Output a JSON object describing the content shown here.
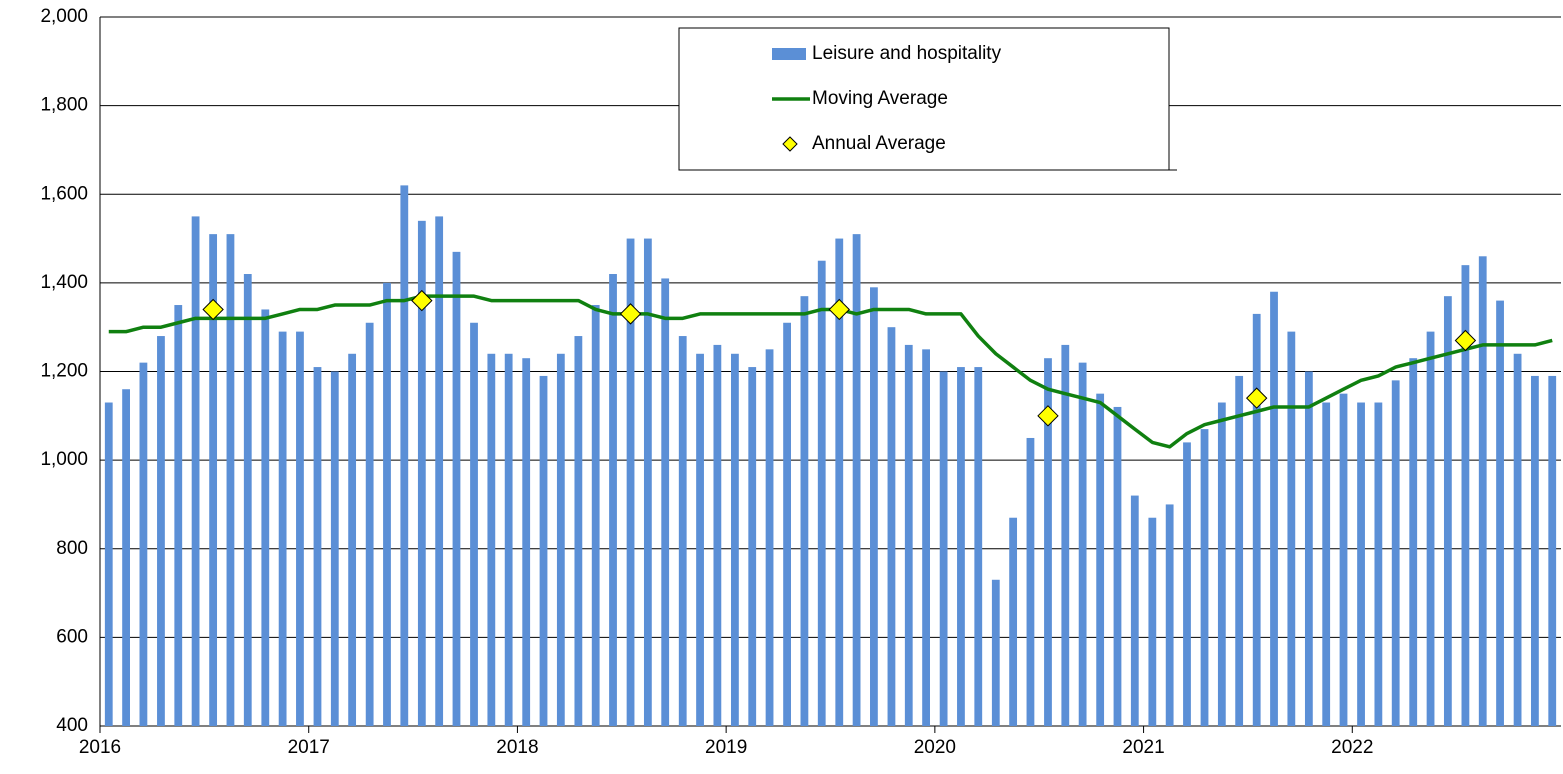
{
  "chart_data": {
    "type": "combo",
    "xlim": [
      2016,
      2023
    ],
    "xticks": [
      2016,
      2017,
      2018,
      2019,
      2020,
      2021,
      2022
    ],
    "ylim": [
      400,
      2000
    ],
    "yticks": [
      {
        "value": 400,
        "label": "400"
      },
      {
        "value": 600,
        "label": "600"
      },
      {
        "value": 800,
        "label": "800"
      },
      {
        "value": 1000,
        "label": "1,000"
      },
      {
        "value": 1200,
        "label": "1,200"
      },
      {
        "value": 1400,
        "label": "1,400"
      },
      {
        "value": 1600,
        "label": "1,600"
      },
      {
        "value": 1800,
        "label": "1,800"
      },
      {
        "value": 2000,
        "label": "2,000"
      }
    ],
    "grid": true,
    "legend": "top",
    "x": [
      2016.042,
      2016.125,
      2016.208,
      2016.292,
      2016.375,
      2016.458,
      2016.542,
      2016.625,
      2016.708,
      2016.792,
      2016.875,
      2016.958,
      2017.042,
      2017.125,
      2017.208,
      2017.292,
      2017.375,
      2017.458,
      2017.542,
      2017.625,
      2017.708,
      2017.792,
      2017.875,
      2017.958,
      2018.042,
      2018.125,
      2018.208,
      2018.292,
      2018.375,
      2018.458,
      2018.542,
      2018.625,
      2018.708,
      2018.792,
      2018.875,
      2018.958,
      2019.042,
      2019.125,
      2019.208,
      2019.292,
      2019.375,
      2019.458,
      2019.542,
      2019.625,
      2019.708,
      2019.792,
      2019.875,
      2019.958,
      2020.042,
      2020.125,
      2020.208,
      2020.292,
      2020.375,
      2020.458,
      2020.542,
      2020.625,
      2020.708,
      2020.792,
      2020.875,
      2020.958,
      2021.042,
      2021.125,
      2021.208,
      2021.292,
      2021.375,
      2021.458,
      2021.542,
      2021.625,
      2021.708,
      2021.792,
      2021.875,
      2021.958,
      2022.042,
      2022.125,
      2022.208,
      2022.292,
      2022.375,
      2022.458,
      2022.542,
      2022.625,
      2022.708,
      2022.792,
      2022.875,
      2022.958
    ],
    "series": [
      {
        "name": "Leisure and hospitality",
        "type": "bar",
        "color": "#5b8fd6",
        "values": [
          1130,
          1160,
          1220,
          1280,
          1350,
          1550,
          1510,
          1510,
          1420,
          1340,
          1290,
          1290,
          1210,
          1200,
          1240,
          1310,
          1400,
          1620,
          1540,
          1550,
          1470,
          1310,
          1240,
          1240,
          1230,
          1190,
          1240,
          1280,
          1350,
          1420,
          1500,
          1500,
          1410,
          1280,
          1240,
          1260,
          1240,
          1210,
          1250,
          1310,
          1370,
          1450,
          1500,
          1510,
          1390,
          1300,
          1260,
          1250,
          1200,
          1210,
          1210,
          730,
          870,
          1050,
          1230,
          1260,
          1220,
          1150,
          1120,
          920,
          870,
          900,
          1040,
          1070,
          1130,
          1190,
          1330,
          1380,
          1290,
          1200,
          1130,
          1150,
          1130,
          1130,
          1180,
          1230,
          1290,
          1370,
          1440,
          1460,
          1360,
          1240,
          1190,
          1190
        ]
      },
      {
        "name": "Moving Average",
        "type": "line",
        "color": "#108010",
        "values": [
          1290,
          1290,
          1300,
          1300,
          1310,
          1320,
          1320,
          1320,
          1320,
          1320,
          1330,
          1340,
          1340,
          1350,
          1350,
          1350,
          1360,
          1360,
          1370,
          1370,
          1370,
          1370,
          1360,
          1360,
          1360,
          1360,
          1360,
          1360,
          1340,
          1330,
          1330,
          1330,
          1320,
          1320,
          1330,
          1330,
          1330,
          1330,
          1330,
          1330,
          1330,
          1340,
          1340,
          1330,
          1340,
          1340,
          1340,
          1330,
          1330,
          1330,
          1280,
          1240,
          1210,
          1180,
          1160,
          1150,
          1140,
          1130,
          1100,
          1070,
          1040,
          1030,
          1060,
          1080,
          1090,
          1100,
          1110,
          1120,
          1120,
          1120,
          1140,
          1160,
          1180,
          1190,
          1210,
          1220,
          1230,
          1240,
          1250,
          1260,
          1260,
          1260,
          1260,
          1270
        ]
      },
      {
        "name": "Annual Average",
        "type": "scatter",
        "color": "#ffff00",
        "values": [
          null,
          null,
          null,
          null,
          null,
          null,
          1340,
          null,
          null,
          null,
          null,
          null,
          null,
          null,
          null,
          null,
          null,
          null,
          1360,
          null,
          null,
          null,
          null,
          null,
          null,
          null,
          null,
          null,
          null,
          null,
          1330,
          null,
          null,
          null,
          null,
          null,
          null,
          null,
          null,
          null,
          null,
          null,
          1340,
          null,
          null,
          null,
          null,
          null,
          null,
          null,
          null,
          null,
          null,
          null,
          1100,
          null,
          null,
          null,
          null,
          null,
          null,
          null,
          null,
          null,
          null,
          null,
          1140,
          null,
          null,
          null,
          null,
          null,
          null,
          null,
          null,
          null,
          null,
          null,
          1270,
          null,
          null,
          null,
          null,
          null
        ]
      }
    ]
  }
}
